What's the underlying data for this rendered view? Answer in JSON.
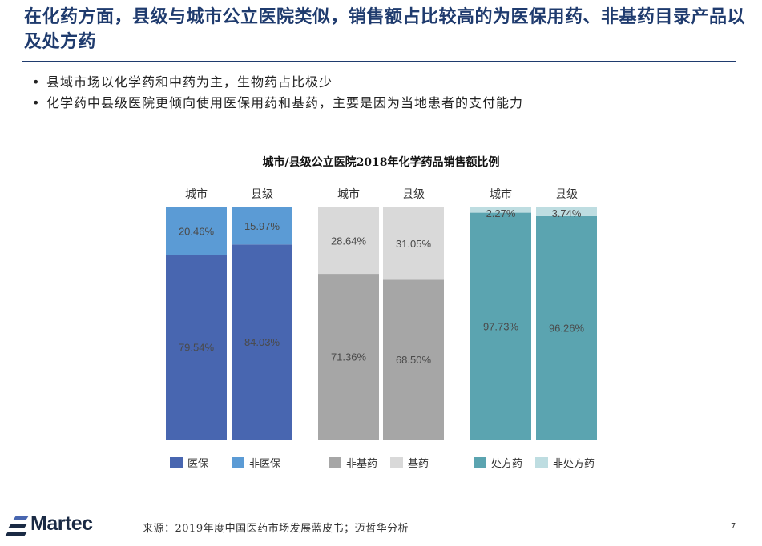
{
  "title": "在化药方面，县级与城市公立医院类似，销售额占比较高的为医保用药、非基药目录产品以及处方药",
  "bullets": [
    "县域市场以化学药和中药为主，生物药占比极少",
    "化学药中县级医院更倾向使用医保用药和基药，主要是因为当地患者的支付能力"
  ],
  "colors": {
    "title": "#1f3b6e",
    "yibao": "#4866b0",
    "fei_yibao": "#5b9bd5",
    "fei_jiyao": "#a6a6a6",
    "jiyao": "#d9d9d9",
    "chufang": "#5ba4b0",
    "fei_chufang": "#bedde1"
  },
  "chart_data": {
    "type": "bar",
    "stacked": true,
    "title": "城市/县级公立医院2018年化学药品销售额比例",
    "unit": "%",
    "ylim": [
      0,
      100
    ],
    "groups": [
      {
        "categories": [
          "城市",
          "县级"
        ],
        "series": [
          {
            "name": "医保",
            "values": [
              79.54,
              84.03
            ],
            "labels": [
              "79.54%",
              "84.03%"
            ],
            "color": "#4866b0"
          },
          {
            "name": "非医保",
            "values": [
              20.46,
              15.97
            ],
            "labels": [
              "20.46%",
              "15.97%"
            ],
            "color": "#5b9bd5"
          }
        ]
      },
      {
        "categories": [
          "城市",
          "县级"
        ],
        "series": [
          {
            "name": "非基药",
            "values": [
              71.36,
              68.5
            ],
            "labels": [
              "71.36%",
              "68.50%"
            ],
            "color": "#a6a6a6"
          },
          {
            "name": "基药",
            "values": [
              28.64,
              31.05
            ],
            "labels": [
              "28.64%",
              "31.05%"
            ],
            "color": "#d9d9d9"
          }
        ]
      },
      {
        "categories": [
          "城市",
          "县级"
        ],
        "series": [
          {
            "name": "处方药",
            "values": [
              97.73,
              96.26
            ],
            "labels": [
              "97.73%",
              "96.26%"
            ],
            "color": "#5ba4b0"
          },
          {
            "name": "非处方药",
            "values": [
              2.27,
              3.74
            ],
            "labels": [
              "2.27%",
              "3.74%"
            ],
            "color": "#bedde1"
          }
        ]
      }
    ]
  },
  "footer": {
    "source": "来源：2019年度中国医药市场发展蓝皮书；迈哲华分析",
    "page": "7",
    "logo_text": "Martec"
  }
}
